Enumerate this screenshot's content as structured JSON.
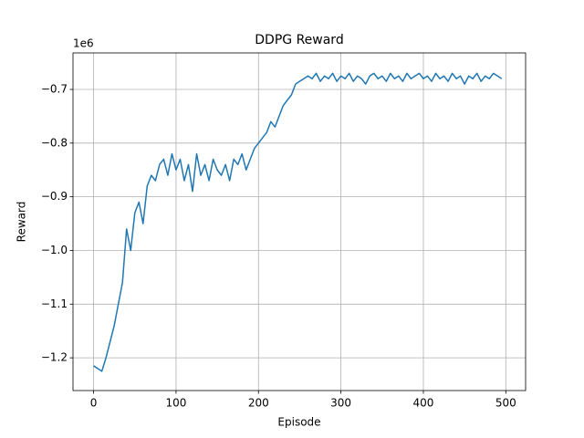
{
  "chart_data": {
    "type": "line",
    "title": "DDPG Reward",
    "x_label": "Episode",
    "y_label": "Reward",
    "y_offset_text": "1e6",
    "color": "#1f77b4",
    "grid": true,
    "xlim": [
      -25,
      524
    ],
    "ylim": [
      -1.261,
      -0.632
    ],
    "xticks": [
      0,
      100,
      200,
      300,
      400,
      500
    ],
    "yticks": [
      {
        "value": -1.2,
        "label": "−1.2"
      },
      {
        "value": -1.1,
        "label": "−1.1"
      },
      {
        "value": -1.0,
        "label": "−1.0"
      },
      {
        "value": -0.9,
        "label": "−0.9"
      },
      {
        "value": -0.8,
        "label": "−0.8"
      },
      {
        "value": -0.7,
        "label": "−0.7"
      }
    ],
    "x": [
      0,
      5,
      10,
      15,
      20,
      25,
      30,
      35,
      40,
      45,
      50,
      55,
      60,
      65,
      70,
      75,
      80,
      85,
      90,
      95,
      100,
      105,
      110,
      115,
      120,
      125,
      130,
      135,
      140,
      145,
      150,
      155,
      160,
      165,
      170,
      175,
      180,
      185,
      190,
      195,
      200,
      205,
      210,
      215,
      220,
      225,
      230,
      235,
      240,
      245,
      250,
      255,
      260,
      265,
      270,
      275,
      280,
      285,
      290,
      295,
      300,
      305,
      310,
      315,
      320,
      325,
      330,
      335,
      340,
      345,
      350,
      355,
      360,
      365,
      370,
      375,
      380,
      385,
      390,
      395,
      400,
      405,
      410,
      415,
      420,
      425,
      430,
      435,
      440,
      445,
      450,
      455,
      460,
      465,
      470,
      475,
      480,
      485,
      490,
      495
    ],
    "values": [
      -1.215,
      -1.22,
      -1.225,
      -1.2,
      -1.17,
      -1.14,
      -1.1,
      -1.06,
      -0.96,
      -1.0,
      -0.93,
      -0.91,
      -0.95,
      -0.88,
      -0.86,
      -0.87,
      -0.84,
      -0.83,
      -0.86,
      -0.82,
      -0.85,
      -0.83,
      -0.87,
      -0.84,
      -0.89,
      -0.82,
      -0.86,
      -0.84,
      -0.87,
      -0.83,
      -0.85,
      -0.86,
      -0.84,
      -0.87,
      -0.83,
      -0.84,
      -0.82,
      -0.85,
      -0.83,
      -0.81,
      -0.8,
      -0.79,
      -0.78,
      -0.76,
      -0.77,
      -0.75,
      -0.73,
      -0.72,
      -0.71,
      -0.69,
      -0.685,
      -0.68,
      -0.675,
      -0.68,
      -0.67,
      -0.685,
      -0.675,
      -0.68,
      -0.67,
      -0.685,
      -0.675,
      -0.68,
      -0.67,
      -0.685,
      -0.675,
      -0.68,
      -0.69,
      -0.675,
      -0.67,
      -0.68,
      -0.675,
      -0.685,
      -0.67,
      -0.68,
      -0.675,
      -0.685,
      -0.67,
      -0.68,
      -0.675,
      -0.67,
      -0.68,
      -0.675,
      -0.685,
      -0.67,
      -0.68,
      -0.675,
      -0.685,
      -0.67,
      -0.68,
      -0.675,
      -0.69,
      -0.675,
      -0.68,
      -0.67,
      -0.685,
      -0.675,
      -0.68,
      -0.67,
      -0.675,
      -0.68
    ]
  }
}
